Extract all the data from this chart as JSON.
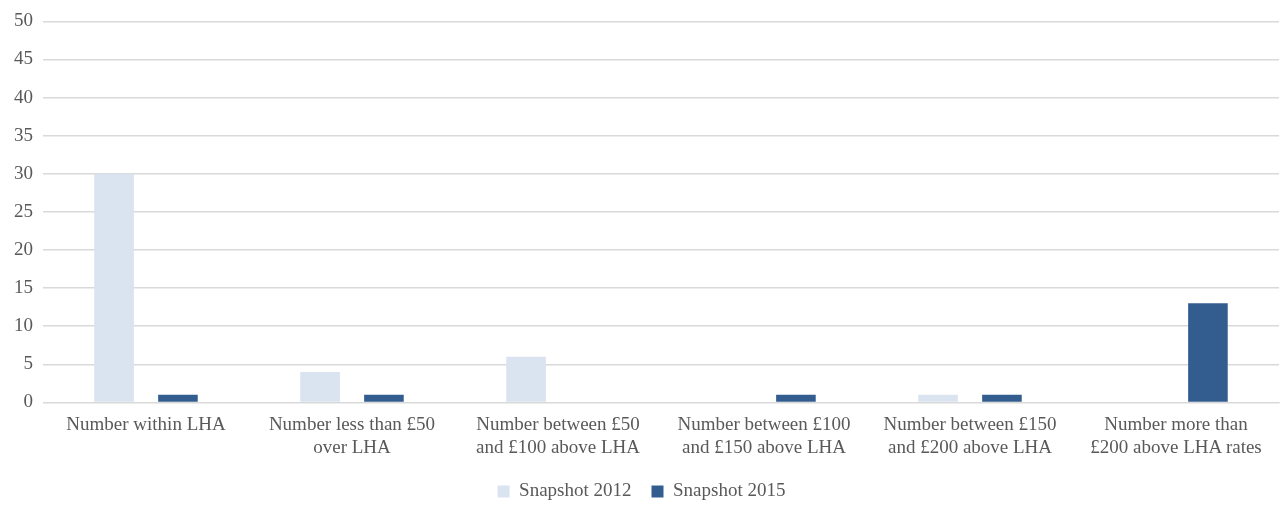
{
  "chart_data": {
    "type": "bar",
    "categories": [
      "Number within LHA",
      "Number less than £50 over LHA",
      "Number between £50 and £100 above LHA",
      "Number between £100 and £150 above LHA",
      "Number between £150 and £200 above LHA",
      "Number more than £200 above LHA rates"
    ],
    "series": [
      {
        "name": "Snapshot 2012",
        "color": "#dae3f0",
        "values": [
          30,
          4,
          6,
          0,
          1,
          0
        ]
      },
      {
        "name": "Snapshot 2015",
        "color": "#335d8f",
        "values": [
          1,
          1,
          0,
          1,
          1,
          13
        ]
      }
    ],
    "ylim": [
      0,
      50
    ],
    "yticks": [
      0,
      5,
      10,
      15,
      20,
      25,
      30,
      35,
      40,
      45,
      50
    ],
    "grid": "y",
    "legend": "bottom"
  }
}
